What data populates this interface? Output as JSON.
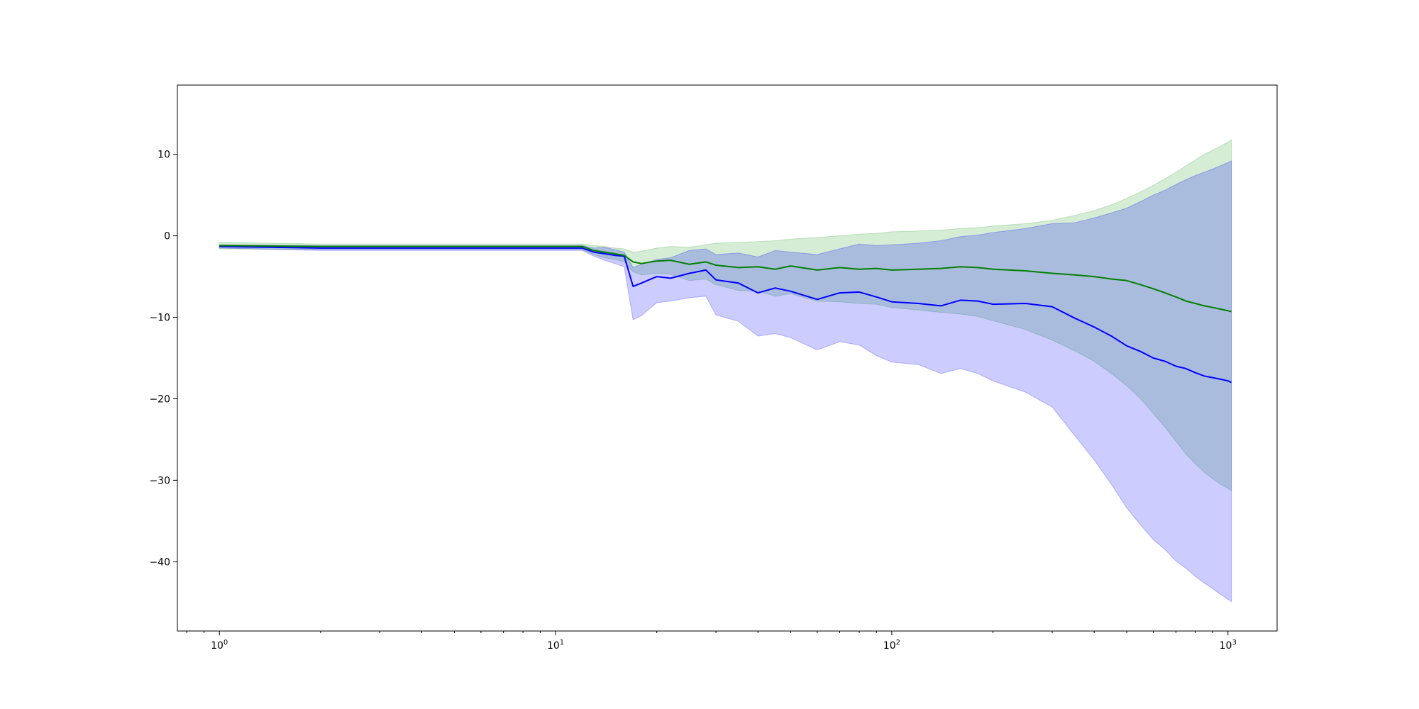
{
  "chart_data": {
    "type": "line",
    "xscale": "log",
    "xlim": [
      0.75,
      1400
    ],
    "ylim": [
      -48.5,
      18.5
    ],
    "grid": false,
    "legend": "none",
    "x_ticks": [
      {
        "value": 1,
        "base": "10",
        "exp": "0"
      },
      {
        "value": 10,
        "base": "10",
        "exp": "1"
      },
      {
        "value": 100,
        "base": "10",
        "exp": "2"
      },
      {
        "value": 1000,
        "base": "10",
        "exp": "3"
      }
    ],
    "y_ticks": [
      {
        "value": 10,
        "label": "10"
      },
      {
        "value": 0,
        "label": "0"
      },
      {
        "value": -10,
        "label": "−10"
      },
      {
        "value": -20,
        "label": "−20"
      },
      {
        "value": -30,
        "label": "−30"
      },
      {
        "value": -40,
        "label": "−40"
      }
    ],
    "series": [
      {
        "color": "#008000",
        "band_color": "#2ca02c",
        "x": [
          1,
          2,
          5,
          10,
          12,
          13,
          14,
          15,
          16,
          17,
          18,
          20,
          22,
          25,
          28,
          30,
          35,
          40,
          45,
          50,
          60,
          70,
          80,
          90,
          100,
          120,
          140,
          160,
          180,
          200,
          250,
          300,
          350,
          400,
          450,
          500,
          550,
          600,
          650,
          700,
          750,
          800,
          850,
          900,
          950,
          1000,
          1024
        ],
        "y": [
          -1.2,
          -1.3,
          -1.3,
          -1.3,
          -1.3,
          -1.8,
          -2.0,
          -2.2,
          -2.4,
          -3.2,
          -3.4,
          -3.1,
          -3.0,
          -3.5,
          -3.2,
          -3.6,
          -3.9,
          -3.8,
          -4.1,
          -3.7,
          -4.2,
          -3.9,
          -4.1,
          -4.0,
          -4.2,
          -4.1,
          -4.0,
          -3.8,
          -3.9,
          -4.1,
          -4.3,
          -4.6,
          -4.8,
          -5.0,
          -5.3,
          -5.5,
          -6.0,
          -6.5,
          -7.0,
          -7.5,
          -8.0,
          -8.3,
          -8.6,
          -8.8,
          -9.0,
          -9.2,
          -9.3
        ],
        "upper": [
          -0.8,
          -1.0,
          -1.0,
          -1.0,
          -1.0,
          -1.2,
          -1.3,
          -1.5,
          -1.6,
          -2.0,
          -1.9,
          -1.5,
          -1.3,
          -1.4,
          -1.1,
          -0.9,
          -0.8,
          -0.7,
          -0.6,
          -0.4,
          -0.2,
          0.0,
          0.2,
          0.3,
          0.5,
          0.6,
          0.7,
          0.9,
          1.0,
          1.2,
          1.5,
          1.9,
          2.5,
          3.1,
          3.8,
          4.6,
          5.4,
          6.2,
          7.0,
          7.8,
          8.6,
          9.3,
          10.0,
          10.5,
          11.0,
          11.5,
          11.8
        ],
        "lower": [
          -1.6,
          -1.7,
          -1.7,
          -1.7,
          -1.7,
          -2.3,
          -2.7,
          -2.9,
          -3.2,
          -4.4,
          -4.8,
          -4.6,
          -4.7,
          -5.5,
          -5.3,
          -6.0,
          -6.7,
          -6.8,
          -7.4,
          -7.1,
          -8.0,
          -8.1,
          -8.3,
          -8.4,
          -8.8,
          -9.1,
          -9.4,
          -9.6,
          -9.9,
          -10.4,
          -11.5,
          -12.8,
          -14.1,
          -15.4,
          -16.9,
          -18.4,
          -20.0,
          -21.8,
          -23.5,
          -25.2,
          -26.8,
          -28.0,
          -29.0,
          -29.8,
          -30.5,
          -31.0,
          -31.3
        ]
      },
      {
        "color": "#0000ff",
        "band_color": "#0000ff",
        "x": [
          1,
          2,
          5,
          10,
          12,
          13,
          14,
          15,
          16,
          17,
          18,
          20,
          22,
          25,
          28,
          30,
          35,
          40,
          45,
          50,
          60,
          70,
          80,
          90,
          100,
          120,
          140,
          160,
          180,
          200,
          250,
          300,
          350,
          400,
          450,
          500,
          550,
          600,
          650,
          700,
          750,
          800,
          850,
          900,
          950,
          1000,
          1024
        ],
        "y": [
          -1.3,
          -1.5,
          -1.5,
          -1.5,
          -1.5,
          -2.0,
          -2.2,
          -2.4,
          -2.5,
          -6.2,
          -5.8,
          -5.0,
          -5.2,
          -4.6,
          -4.2,
          -5.4,
          -5.8,
          -7.0,
          -6.4,
          -6.8,
          -7.8,
          -7.0,
          -6.9,
          -7.5,
          -8.1,
          -8.3,
          -8.6,
          -7.9,
          -8.0,
          -8.4,
          -8.3,
          -8.7,
          -10.1,
          -11.2,
          -12.3,
          -13.5,
          -14.2,
          -15.0,
          -15.4,
          -16.0,
          -16.3,
          -16.8,
          -17.2,
          -17.4,
          -17.6,
          -17.8,
          -18.0
        ],
        "upper": [
          -1.1,
          -1.2,
          -1.2,
          -1.2,
          -1.2,
          -1.5,
          -1.4,
          -1.7,
          -2.0,
          -3.9,
          -3.5,
          -2.9,
          -2.7,
          -1.8,
          -1.6,
          -2.3,
          -2.1,
          -2.6,
          -1.8,
          -2.0,
          -2.3,
          -1.6,
          -1.0,
          -1.2,
          -1.1,
          -0.9,
          -0.6,
          -0.1,
          0.1,
          0.4,
          0.9,
          1.5,
          1.6,
          2.2,
          2.8,
          3.4,
          4.2,
          5.0,
          5.6,
          6.3,
          6.9,
          7.4,
          7.8,
          8.2,
          8.6,
          9.0,
          9.2
        ],
        "lower": [
          -1.5,
          -1.8,
          -1.8,
          -1.8,
          -1.8,
          -2.5,
          -3.0,
          -3.4,
          -3.8,
          -10.3,
          -9.8,
          -8.2,
          -8.0,
          -7.6,
          -7.4,
          -9.7,
          -10.5,
          -12.3,
          -12.0,
          -12.5,
          -14.0,
          -13.0,
          -13.4,
          -14.7,
          -15.5,
          -15.8,
          -16.9,
          -16.3,
          -16.9,
          -17.8,
          -19.2,
          -21.0,
          -24.5,
          -27.5,
          -30.5,
          -33.4,
          -35.5,
          -37.3,
          -38.5,
          -39.9,
          -40.8,
          -41.8,
          -42.6,
          -43.3,
          -44.0,
          -44.6,
          -44.9
        ]
      }
    ]
  }
}
